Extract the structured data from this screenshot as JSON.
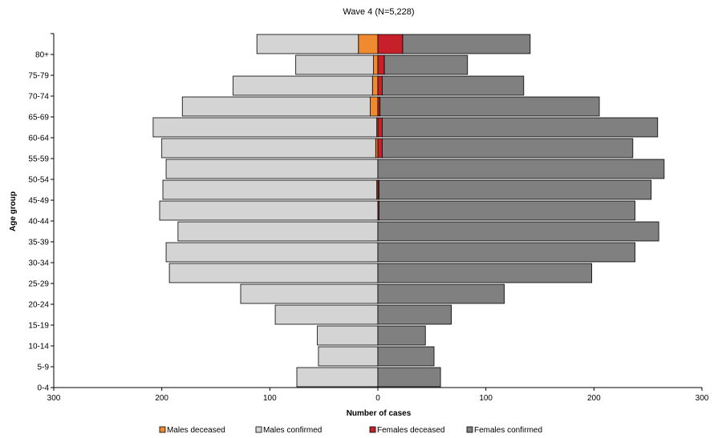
{
  "chart_data": {
    "type": "bar",
    "orientation": "horizontal",
    "layout": "population-pyramid",
    "title": "Wave 4 (N=5,228)",
    "xlabel": "Number of cases",
    "ylabel": "Age group",
    "xlim": [
      -300,
      300
    ],
    "xticks": [
      300,
      200,
      100,
      0,
      100,
      200,
      300
    ],
    "categories": [
      "0-4",
      "5-9",
      "10-14",
      "15-19",
      "20-24",
      "25-29",
      "30-34",
      "35-39",
      "40-44",
      "45-49",
      "50-54",
      "55-59",
      "60-64",
      "65-69",
      "70-74",
      "75-79",
      "80+"
    ],
    "series": [
      {
        "name": "Males deceased",
        "side": "left",
        "color": "#f08a30",
        "values": [
          0,
          0,
          0,
          0,
          0,
          0,
          0,
          0,
          0,
          1,
          0,
          2,
          1,
          7,
          5,
          4,
          18
        ]
      },
      {
        "name": "Males confirmed",
        "side": "left",
        "color": "#d4d4d4",
        "values": [
          75,
          55,
          56,
          95,
          127,
          193,
          196,
          185,
          202,
          198,
          196,
          198,
          207,
          174,
          129,
          72,
          94
        ]
      },
      {
        "name": "Females deceased",
        "side": "right",
        "color": "#c8202a",
        "values": [
          0,
          0,
          0,
          0,
          0,
          0,
          0,
          0,
          1,
          1,
          0,
          4,
          4,
          2,
          4,
          6,
          23
        ]
      },
      {
        "name": "Females confirmed",
        "side": "right",
        "color": "#808080",
        "values": [
          58,
          52,
          44,
          68,
          117,
          198,
          238,
          260,
          237,
          252,
          265,
          232,
          255,
          203,
          131,
          77,
          118
        ]
      }
    ],
    "legend": "bottom",
    "grid": false
  }
}
